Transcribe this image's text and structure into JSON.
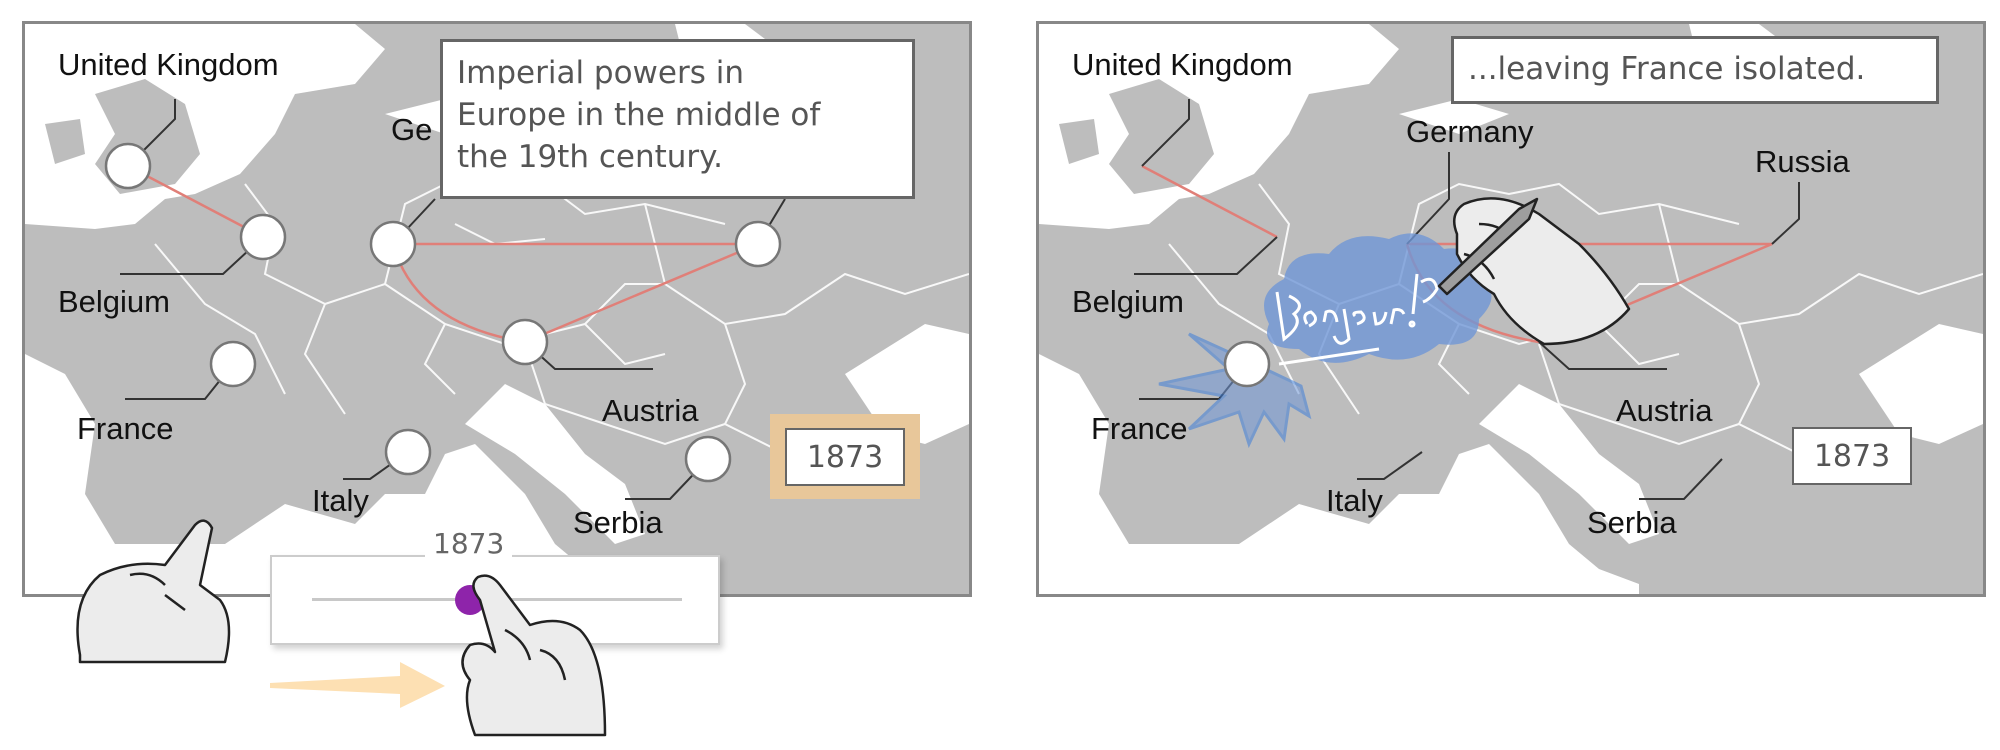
{
  "left_panel": {
    "countries": [
      {
        "id": "uk",
        "name": "United Kingdom"
      },
      {
        "id": "belgium",
        "name": "Belgium"
      },
      {
        "id": "france",
        "name": "France"
      },
      {
        "id": "germany",
        "name": "Ge"
      },
      {
        "id": "austria",
        "name": "Austria"
      },
      {
        "id": "italy",
        "name": "Italy"
      },
      {
        "id": "serbia",
        "name": "Serbia"
      }
    ],
    "callout_lines": [
      "Imperial powers in",
      "Europe in the middle of",
      "the 19th century."
    ],
    "year": "1873",
    "slider": {
      "value_label": "1873",
      "position": 0.42,
      "thumb_color": "#8e24aa"
    }
  },
  "right_panel": {
    "countries": [
      {
        "id": "uk",
        "name": "United Kingdom"
      },
      {
        "id": "belgium",
        "name": "Belgium"
      },
      {
        "id": "france",
        "name": "France"
      },
      {
        "id": "germany",
        "name": "Germany"
      },
      {
        "id": "russia",
        "name": "Russia"
      },
      {
        "id": "austria",
        "name": "Austria"
      },
      {
        "id": "italy",
        "name": "Italy"
      },
      {
        "id": "serbia",
        "name": "Serbia"
      }
    ],
    "callout": "...leaving France isolated.",
    "year": "1873",
    "annotation_text": "Bonjour!?"
  },
  "colors": {
    "alliance_line": "#e07f78",
    "map_sea": "#ffffff",
    "map_land": "#bdbdbd",
    "highlight_box": "#e8c79a",
    "annotation_blue": "#6f96d6",
    "annotation_outline": "#3f7fd9",
    "arrow": "#fde0b3"
  },
  "icons": [
    "tap-hand-icon",
    "drag-hand-icon",
    "pen-hand-icon",
    "arrow-right-icon"
  ]
}
